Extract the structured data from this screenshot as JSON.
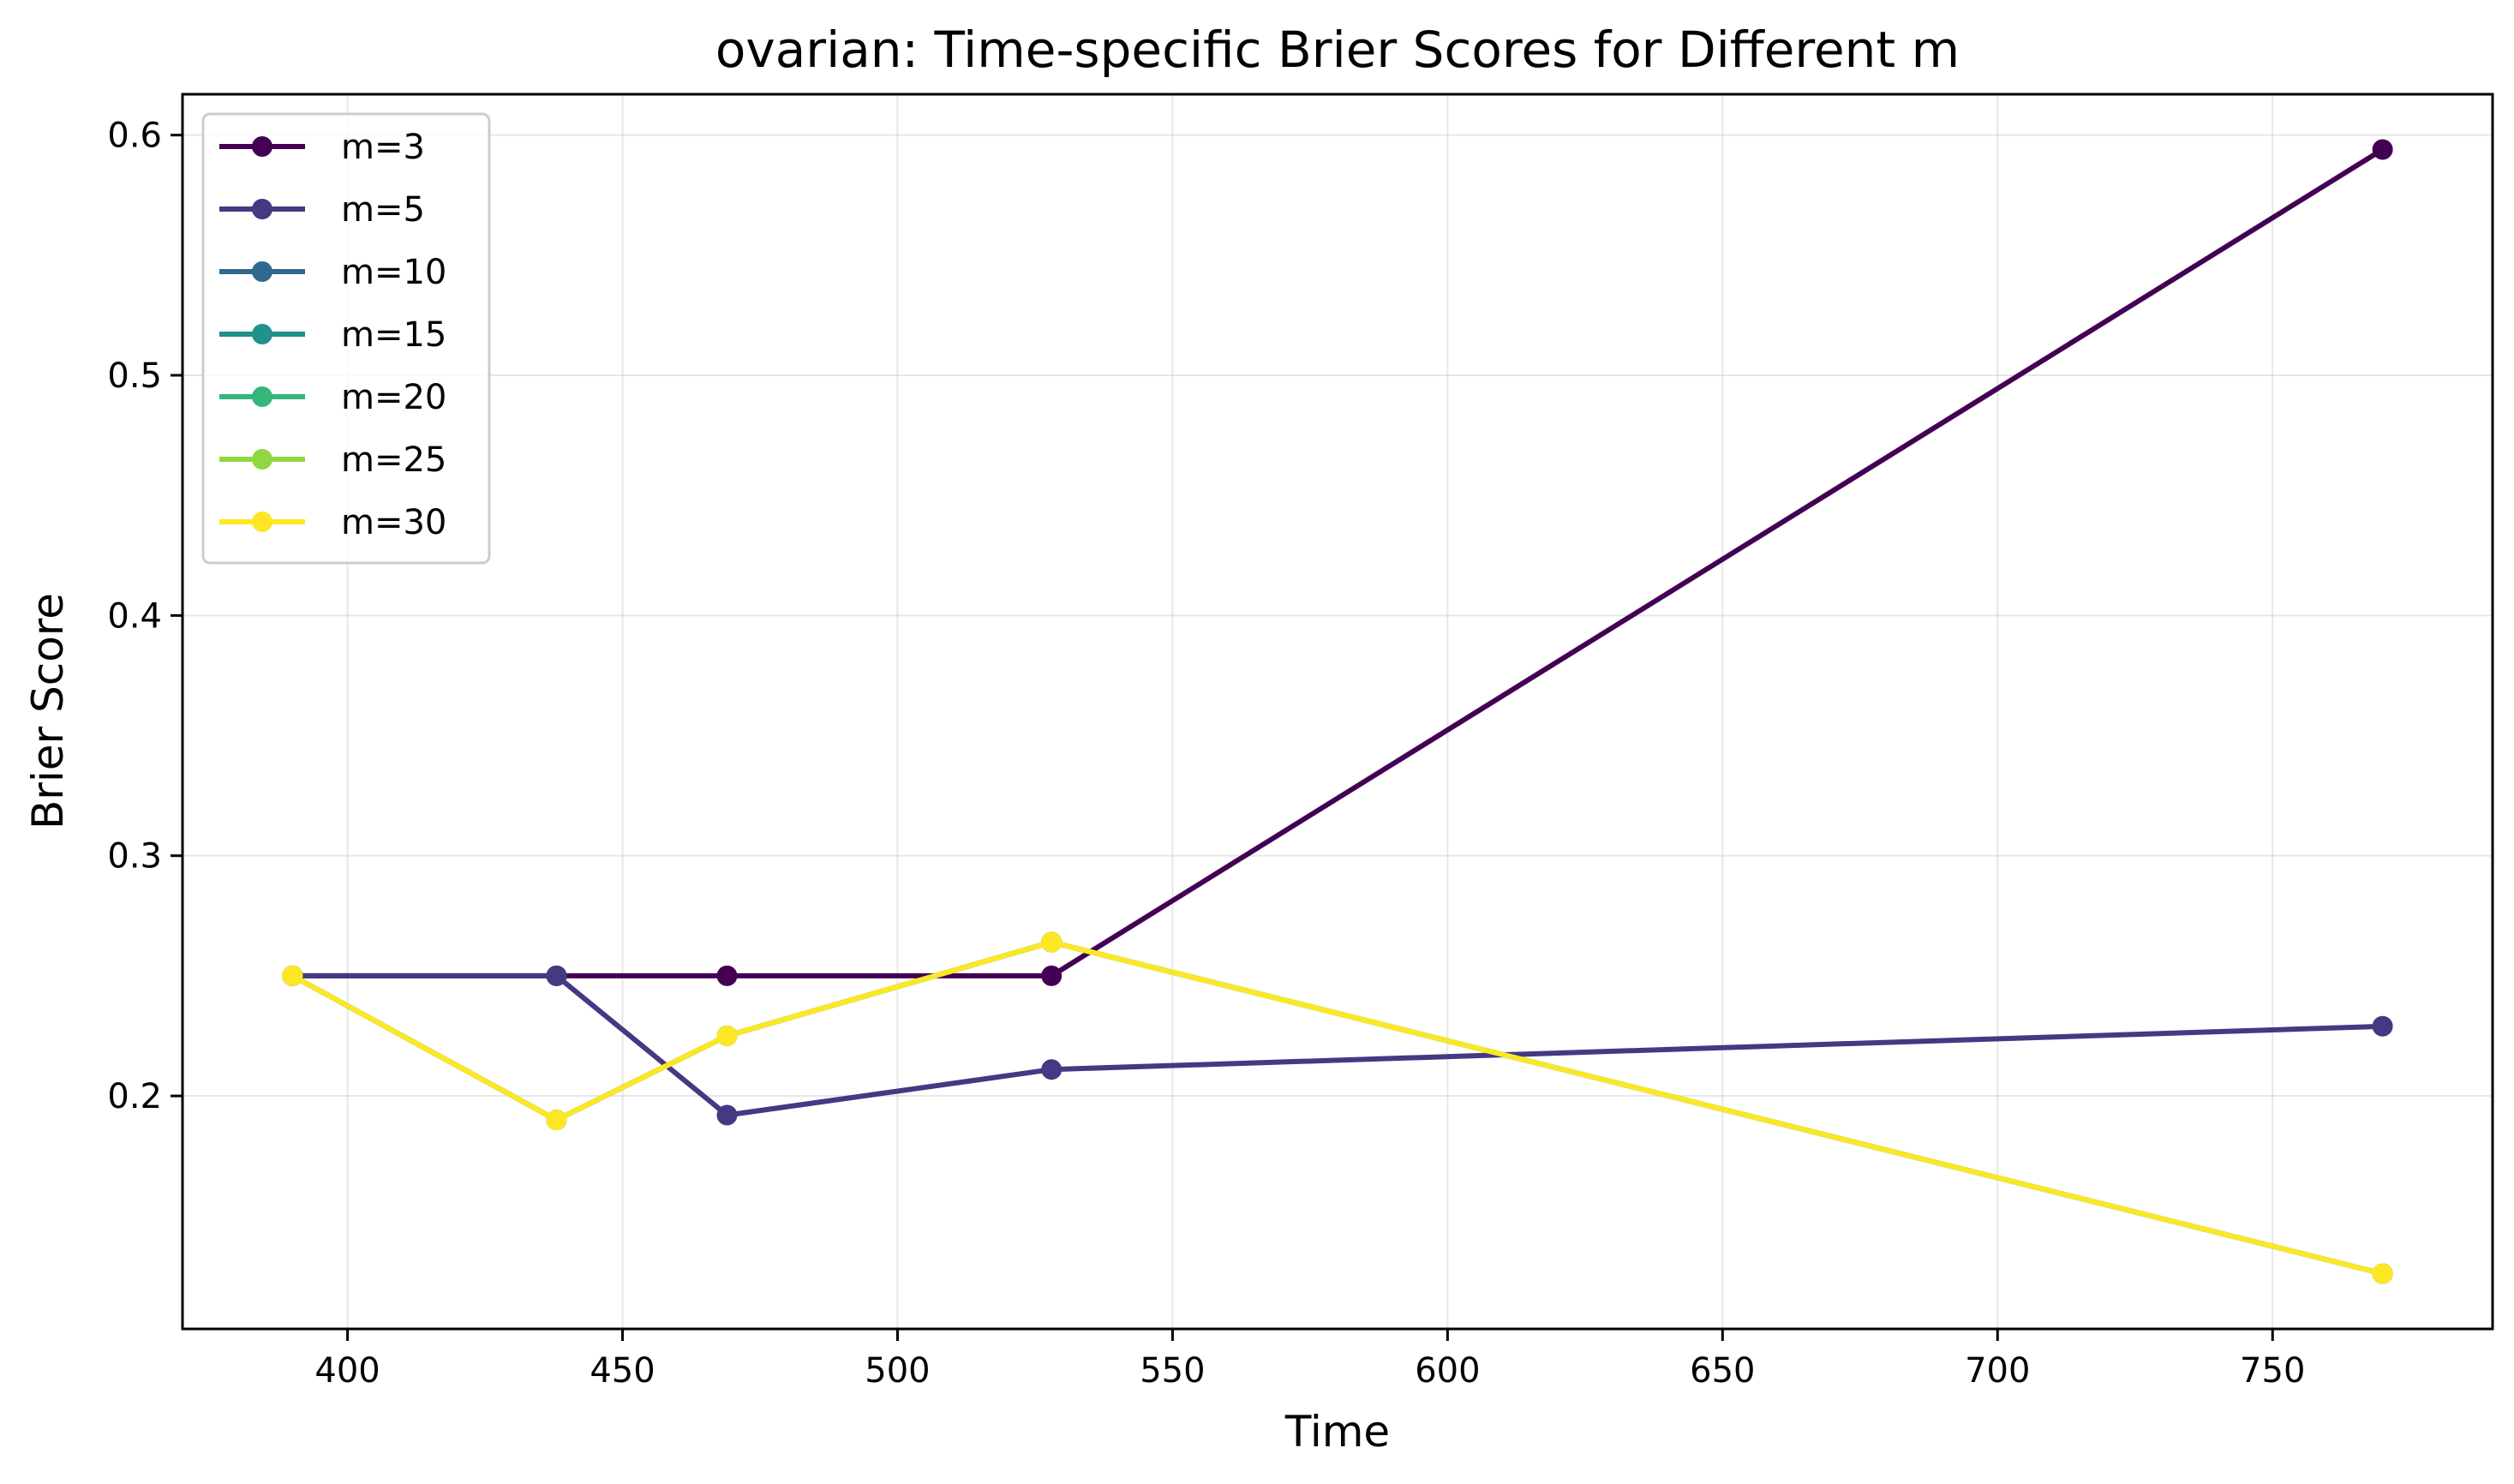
{
  "chart_data": {
    "type": "line",
    "title": "ovarian: Time-specific Brier Scores for Different m",
    "xlabel": "Time",
    "ylabel": "Brier Score",
    "xlim": [
      370,
      790
    ],
    "ylim": [
      0.103,
      0.617
    ],
    "xticks": [
      400,
      450,
      500,
      550,
      600,
      650,
      700,
      750
    ],
    "yticks": [
      0.2,
      0.3,
      0.4,
      0.5,
      0.6
    ],
    "xtick_labels": [
      "400",
      "450",
      "500",
      "550",
      "600",
      "650",
      "700",
      "750"
    ],
    "ytick_labels": [
      "0.2",
      "0.3",
      "0.4",
      "0.5",
      "0.6"
    ],
    "grid": true,
    "legend_position": "upper-left",
    "x": [
      390,
      438,
      469,
      528,
      770
    ],
    "series": [
      {
        "name": "m=3",
        "color": "#440154",
        "values": [
          0.25,
          0.25,
          0.25,
          0.25,
          0.594
        ]
      },
      {
        "name": "m=5",
        "color": "#443983",
        "values": [
          0.25,
          0.25,
          0.192,
          0.211,
          0.229
        ]
      },
      {
        "name": "m=10",
        "color": "#31688e",
        "values": [
          0.25,
          0.19,
          0.225,
          0.264,
          0.126
        ]
      },
      {
        "name": "m=15",
        "color": "#21918c",
        "values": [
          0.25,
          0.19,
          0.225,
          0.264,
          0.126
        ]
      },
      {
        "name": "m=20",
        "color": "#35b779",
        "values": [
          0.25,
          0.19,
          0.225,
          0.264,
          0.126
        ]
      },
      {
        "name": "m=25",
        "color": "#90d743",
        "values": [
          0.25,
          0.19,
          0.225,
          0.264,
          0.126
        ]
      },
      {
        "name": "m=30",
        "color": "#fde725",
        "values": [
          0.25,
          0.19,
          0.225,
          0.264,
          0.126
        ]
      }
    ]
  }
}
